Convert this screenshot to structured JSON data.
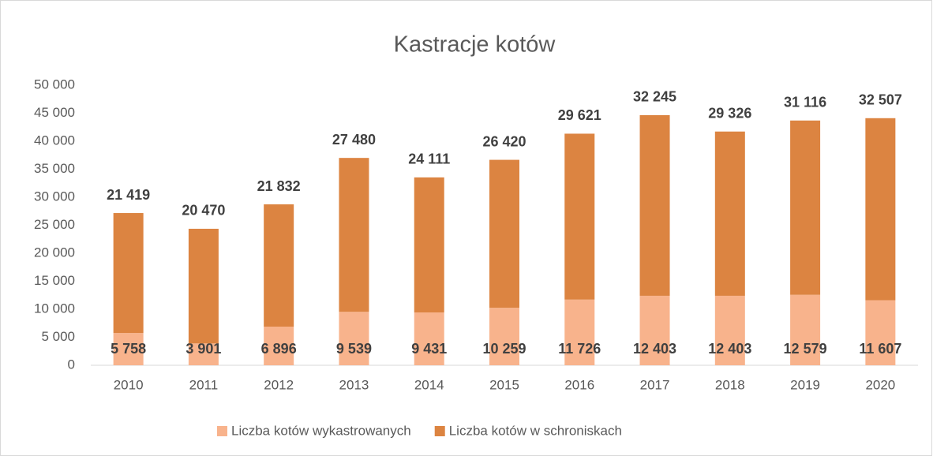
{
  "chart_data": {
    "type": "bar",
    "stacked": true,
    "title": "Kastracje kotów",
    "categories": [
      "2010",
      "2011",
      "2012",
      "2013",
      "2014",
      "2015",
      "2016",
      "2017",
      "2018",
      "2019",
      "2020"
    ],
    "series": [
      {
        "name": "Liczba kotów wykastrowanych",
        "color": "#f8b38c",
        "values": [
          5758,
          3901,
          6896,
          9539,
          9431,
          10259,
          11726,
          12403,
          12403,
          12579,
          11607
        ],
        "value_labels": [
          "5 758",
          "3 901",
          "6 896",
          "9 539",
          "9 431",
          "10 259",
          "11 726",
          "12 403",
          "12 403",
          "12 579",
          "11 607"
        ]
      },
      {
        "name": "Liczba kotów w schroniskach",
        "color": "#dc8441",
        "values": [
          21419,
          20470,
          21832,
          27480,
          24111,
          26420,
          29621,
          32245,
          29326,
          31116,
          32507
        ],
        "value_labels": [
          "21 419",
          "20 470",
          "21 832",
          "27 480",
          "24 111",
          "26 420",
          "29 621",
          "32 245",
          "29 326",
          "31 116",
          "32 507"
        ]
      }
    ],
    "ylim": [
      0,
      50000
    ],
    "yticks": [
      0,
      {
        "value": 5000,
        "label": "5 000"
      },
      {
        "value": 10000,
        "label": "10 000"
      },
      {
        "value": 15000,
        "label": "15 000"
      },
      {
        "value": 20000,
        "label": "20 000"
      },
      {
        "value": 25000,
        "label": "25 000"
      },
      {
        "value": 30000,
        "label": "30 000"
      },
      {
        "value": 35000,
        "label": "35 000"
      },
      {
        "value": 40000,
        "label": "40 000"
      },
      {
        "value": 45000,
        "label": "45 000"
      },
      {
        "value": 50000,
        "label": "50 000"
      }
    ],
    "grid": false,
    "legend": "bottom"
  }
}
